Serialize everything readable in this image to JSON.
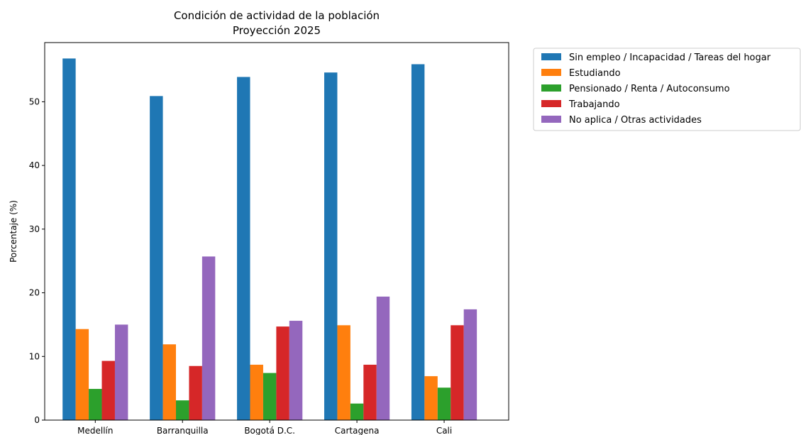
{
  "chart_data": {
    "type": "bar",
    "title": "Condición de actividad de la población",
    "subtitle": "Proyección 2025",
    "ylabel": "Porcentaje (%)",
    "xlabel": "",
    "ylim": [
      0,
      59.3
    ],
    "yticks": [
      0,
      10,
      20,
      30,
      40,
      50
    ],
    "grid": false,
    "legend_position": "outside-right",
    "categories": [
      "Medellín",
      "Barranquilla",
      "Bogotá D.C.",
      "Cartagena",
      "Cali"
    ],
    "series": [
      {
        "name": "Sin empleo / Incapacidad / Tareas del hogar",
        "color": "#1f77b4",
        "values": [
          56.8,
          50.9,
          53.9,
          54.6,
          55.9
        ]
      },
      {
        "name": "Estudiando",
        "color": "#ff7f0e",
        "values": [
          14.3,
          11.9,
          8.7,
          14.9,
          6.9
        ]
      },
      {
        "name": "Pensionado / Renta / Autoconsumo",
        "color": "#2ca02c",
        "values": [
          4.9,
          3.1,
          7.4,
          2.6,
          5.1
        ]
      },
      {
        "name": "Trabajando",
        "color": "#d62728",
        "values": [
          9.3,
          8.5,
          14.7,
          8.7,
          14.9
        ]
      },
      {
        "name": "No aplica / Otras actividades",
        "color": "#9467bd",
        "values": [
          15.0,
          25.7,
          15.6,
          19.4,
          17.4
        ]
      }
    ]
  }
}
